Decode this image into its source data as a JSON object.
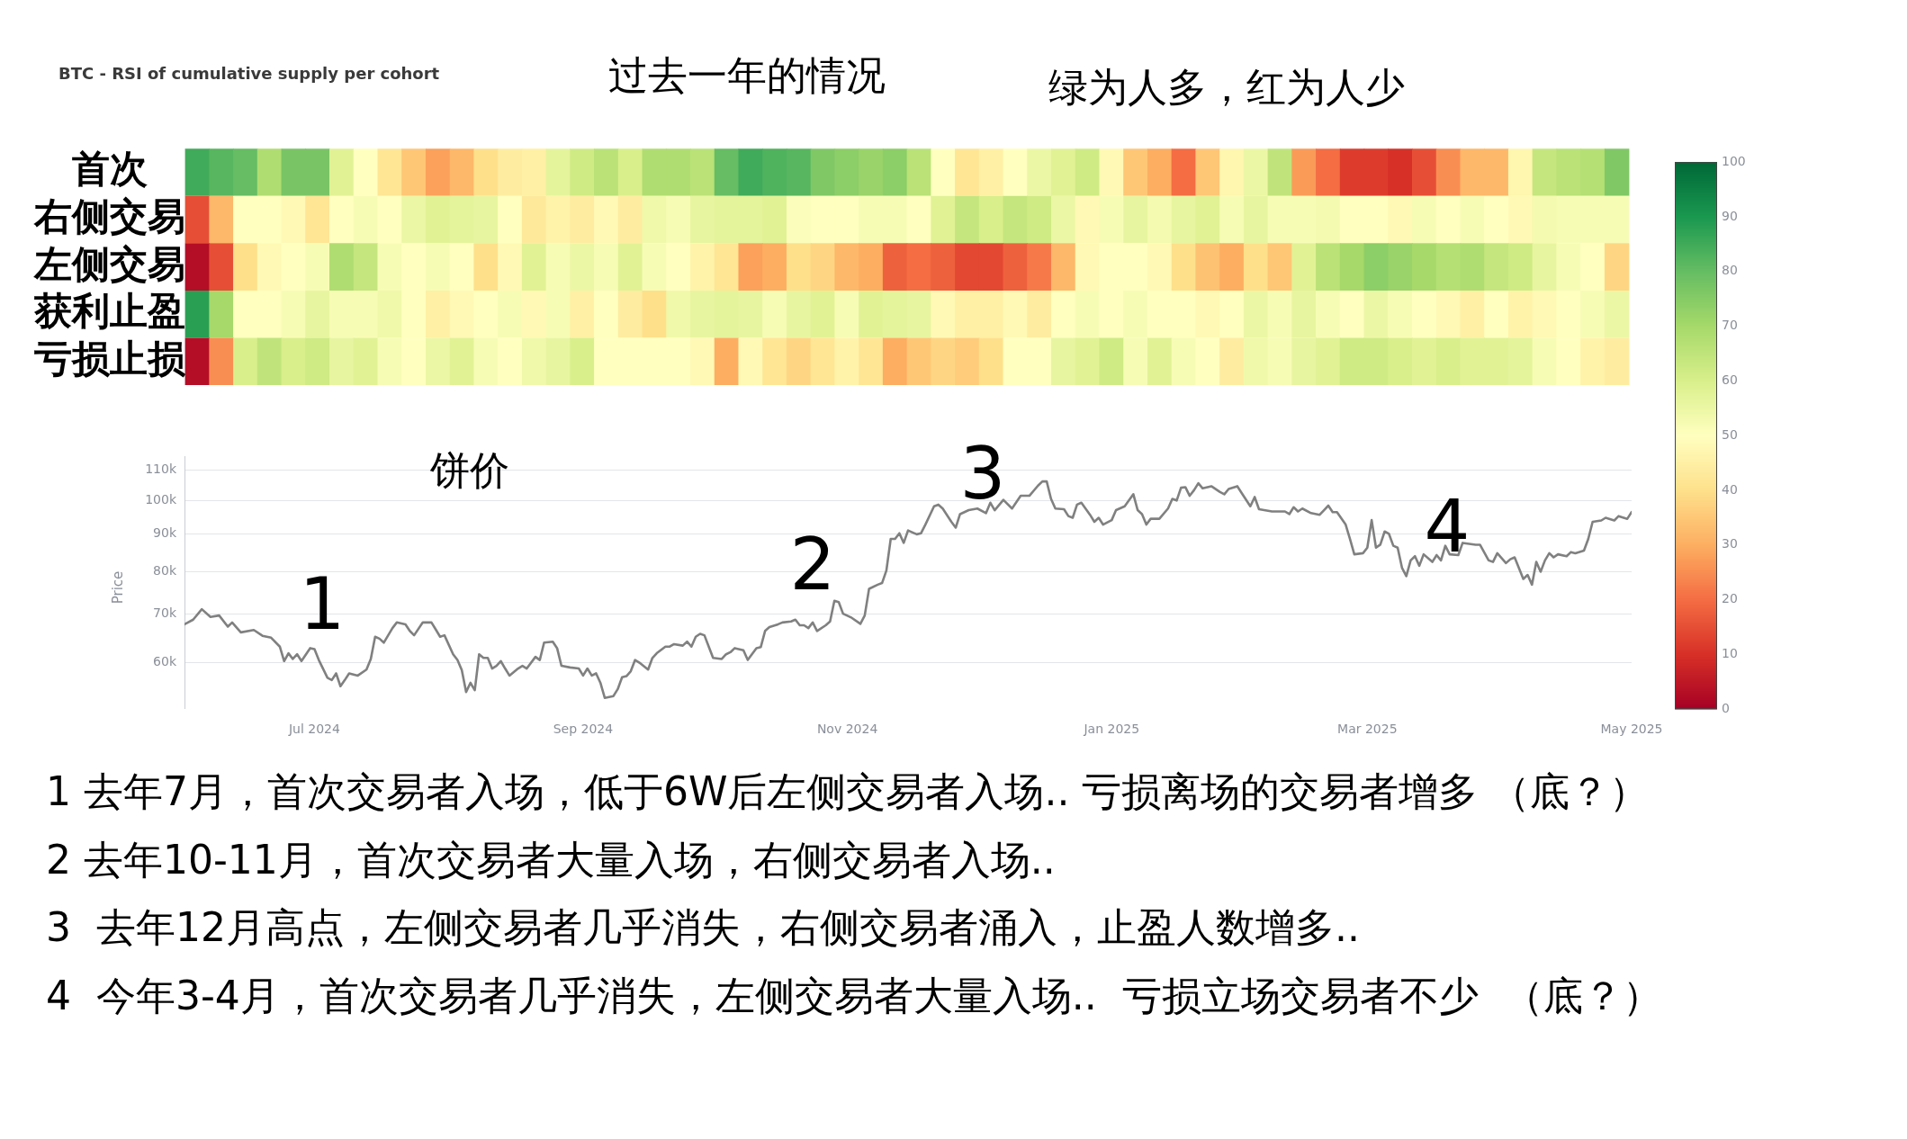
{
  "chart_data": [
    {
      "type": "heatmap",
      "title": "BTC - RSI of cumulative supply per cohort",
      "subtitle": "过去一年的情况",
      "annotations": [
        "绿为人多，红为人少"
      ],
      "categories": [
        null,
        null,
        null,
        null,
        null,
        null,
        null,
        null,
        null,
        null,
        null,
        null,
        null,
        null,
        null,
        null,
        null,
        null,
        null,
        null,
        null,
        null,
        null,
        null,
        null,
        null,
        null,
        null,
        null,
        null,
        null,
        null,
        null,
        null,
        null,
        null,
        null,
        null,
        null,
        null,
        null,
        null,
        null,
        null,
        null,
        null,
        null,
        null,
        null,
        null,
        null,
        null,
        null,
        null,
        null,
        null,
        null,
        null,
        null,
        null
      ],
      "y_categories": [
        "首次",
        "右侧交易",
        "左侧交易",
        "获利止盈",
        "亏损止损"
      ],
      "cells": [
        [
          85,
          82,
          80,
          68,
          77,
          77,
          58,
          50,
          42,
          35,
          28,
          32,
          40,
          44,
          45,
          57,
          62,
          66,
          60,
          68,
          68,
          66,
          80,
          85,
          83,
          82,
          76,
          74,
          72,
          74,
          66,
          50,
          42,
          45,
          50,
          55,
          58,
          62,
          48,
          35,
          30,
          20,
          35,
          47,
          55,
          65,
          27,
          20,
          12,
          12,
          10,
          15,
          25,
          32,
          32,
          47,
          64,
          66,
          67,
          76
        ],
        [
          15,
          32,
          50,
          50,
          48,
          42,
          50,
          52,
          50,
          55,
          58,
          57,
          56,
          50,
          43,
          46,
          44,
          48,
          44,
          54,
          52,
          56,
          57,
          57,
          58,
          51,
          50,
          50,
          52,
          52,
          50,
          58,
          64,
          60,
          64,
          62,
          55,
          48,
          52,
          56,
          53,
          56,
          58,
          52,
          56,
          52,
          52,
          53,
          50,
          50,
          48,
          52,
          50,
          52,
          50,
          48,
          53,
          52,
          52,
          52
        ],
        [
          3,
          15,
          40,
          48,
          50,
          52,
          68,
          64,
          52,
          50,
          52,
          50,
          40,
          48,
          58,
          52,
          55,
          52,
          58,
          52,
          50,
          46,
          42,
          28,
          30,
          40,
          38,
          32,
          30,
          18,
          20,
          18,
          14,
          14,
          18,
          22,
          32,
          48,
          50,
          50,
          48,
          40,
          34,
          30,
          40,
          35,
          58,
          66,
          70,
          74,
          72,
          70,
          67,
          68,
          64,
          62,
          56,
          52,
          50,
          38
        ],
        [
          88,
          70,
          50,
          50,
          52,
          56,
          52,
          52,
          54,
          50,
          45,
          48,
          50,
          52,
          48,
          52,
          45,
          50,
          44,
          40,
          54,
          56,
          57,
          56,
          52,
          56,
          58,
          52,
          58,
          57,
          56,
          48,
          45,
          45,
          48,
          44,
          50,
          52,
          50,
          52,
          50,
          50,
          48,
          50,
          55,
          52,
          56,
          52,
          50,
          55,
          52,
          50,
          48,
          45,
          50,
          46,
          48,
          50,
          52,
          55
        ],
        [
          3,
          25,
          60,
          65,
          60,
          62,
          56,
          58,
          52,
          50,
          55,
          58,
          52,
          50,
          54,
          56,
          60,
          50,
          50,
          50,
          50,
          48,
          30,
          48,
          42,
          38,
          42,
          46,
          42,
          30,
          35,
          38,
          36,
          40,
          50,
          50,
          56,
          58,
          62,
          52,
          58,
          52,
          50,
          44,
          54,
          52,
          56,
          58,
          62,
          62,
          60,
          58,
          60,
          58,
          58,
          57,
          52,
          50,
          46,
          44
        ]
      ],
      "clim": [
        0,
        100
      ],
      "cticks": [
        0,
        10,
        20,
        30,
        40,
        50,
        60,
        70,
        80,
        90,
        100
      ],
      "tick_labels": "y"
    },
    {
      "type": "line",
      "title": "饼价",
      "ylabel": "Price",
      "x": [
        "2024-06-01",
        "2024-06-03",
        "2024-06-05",
        "2024-06-07",
        "2024-06-09",
        "2024-06-11",
        "2024-06-12",
        "2024-06-14",
        "2024-06-17",
        "2024-06-19",
        "2024-06-21",
        "2024-06-23",
        "2024-06-24",
        "2024-06-25",
        "2024-06-26",
        "2024-06-27",
        "2024-06-28",
        "2024-06-30",
        "2024-07-01",
        "2024-07-02",
        "2024-07-04",
        "2024-07-05",
        "2024-07-06",
        "2024-07-07",
        "2024-07-08",
        "2024-07-09",
        "2024-07-11",
        "2024-07-13",
        "2024-07-14",
        "2024-07-15",
        "2024-07-16",
        "2024-07-17",
        "2024-07-19",
        "2024-07-20",
        "2024-07-22",
        "2024-07-23",
        "2024-07-24",
        "2024-07-26",
        "2024-07-28",
        "2024-07-29",
        "2024-07-30",
        "2024-07-31",
        "2024-08-02",
        "2024-08-03",
        "2024-08-04",
        "2024-08-05",
        "2024-08-06",
        "2024-08-07",
        "2024-08-08",
        "2024-08-09",
        "2024-08-10",
        "2024-08-11",
        "2024-08-12",
        "2024-08-13",
        "2024-08-14",
        "2024-08-15",
        "2024-08-17",
        "2024-08-18",
        "2024-08-19",
        "2024-08-21",
        "2024-08-22",
        "2024-08-23",
        "2024-08-25",
        "2024-08-26",
        "2024-08-27",
        "2024-08-29",
        "2024-08-31",
        "2024-09-01",
        "2024-09-02",
        "2024-09-03",
        "2024-09-04",
        "2024-09-05",
        "2024-09-06",
        "2024-09-08",
        "2024-09-09",
        "2024-09-10",
        "2024-09-11",
        "2024-09-12",
        "2024-09-13",
        "2024-09-14",
        "2024-09-16",
        "2024-09-17",
        "2024-09-18",
        "2024-09-20",
        "2024-09-21",
        "2024-09-22",
        "2024-09-24",
        "2024-09-25",
        "2024-09-26",
        "2024-09-27",
        "2024-09-28",
        "2024-09-29",
        "2024-09-30",
        "2024-10-01",
        "2024-10-03",
        "2024-10-04",
        "2024-10-05",
        "2024-10-06",
        "2024-10-08",
        "2024-10-09",
        "2024-10-11",
        "2024-10-12",
        "2024-10-13",
        "2024-10-14",
        "2024-10-16",
        "2024-10-17",
        "2024-10-19",
        "2024-10-20",
        "2024-10-21",
        "2024-10-22",
        "2024-10-23",
        "2024-10-24",
        "2024-10-25",
        "2024-10-27",
        "2024-10-28",
        "2024-10-29",
        "2024-10-30",
        "2024-10-31",
        "2024-11-02",
        "2024-11-04",
        "2024-11-05",
        "2024-11-06",
        "2024-11-08",
        "2024-11-09",
        "2024-11-10",
        "2024-11-11",
        "2024-11-12",
        "2024-11-13",
        "2024-11-14",
        "2024-11-15",
        "2024-11-17",
        "2024-11-18",
        "2024-11-19",
        "2024-11-21",
        "2024-11-22",
        "2024-11-23",
        "2024-11-25",
        "2024-11-26",
        "2024-11-27",
        "2024-11-28",
        "2024-11-29",
        "2024-12-01",
        "2024-12-03",
        "2024-12-04",
        "2024-12-05",
        "2024-12-07",
        "2024-12-09",
        "2024-12-11",
        "2024-12-13",
        "2024-12-15",
        "2024-12-16",
        "2024-12-17",
        "2024-12-18",
        "2024-12-19",
        "2024-12-21",
        "2024-12-22",
        "2024-12-23",
        "2024-12-24",
        "2024-12-25",
        "2024-12-27",
        "2024-12-28",
        "2024-12-29",
        "2024-12-30",
        "2025-01-01",
        "2025-01-02",
        "2025-01-04",
        "2025-01-06",
        "2025-01-07",
        "2025-01-08",
        "2025-01-09",
        "2025-01-10",
        "2025-01-12",
        "2025-01-14",
        "2025-01-15",
        "2025-01-16",
        "2025-01-17",
        "2025-01-18",
        "2025-01-19",
        "2025-01-20",
        "2025-01-21",
        "2025-01-22",
        "2025-01-24",
        "2025-01-26",
        "2025-01-27",
        "2025-01-28",
        "2025-01-30",
        "2025-01-31",
        "2025-02-02",
        "2025-02-03",
        "2025-02-04",
        "2025-02-07",
        "2025-02-10",
        "2025-02-11",
        "2025-02-12",
        "2025-02-13",
        "2025-02-14",
        "2025-02-16",
        "2025-02-18",
        "2025-02-19",
        "2025-02-20",
        "2025-02-21",
        "2025-02-22",
        "2025-02-24",
        "2025-02-25",
        "2025-02-26",
        "2025-02-28",
        "2025-03-01",
        "2025-03-02",
        "2025-03-03",
        "2025-03-04",
        "2025-03-05",
        "2025-03-06",
        "2025-03-07",
        "2025-03-08",
        "2025-03-09",
        "2025-03-10",
        "2025-03-11",
        "2025-03-12",
        "2025-03-13",
        "2025-03-14",
        "2025-03-16",
        "2025-03-17",
        "2025-03-18",
        "2025-03-19",
        "2025-03-20",
        "2025-03-22",
        "2025-03-23",
        "2025-03-26",
        "2025-03-27",
        "2025-03-29",
        "2025-03-30",
        "2025-03-31",
        "2025-04-02",
        "2025-04-03",
        "2025-04-04",
        "2025-04-06",
        "2025-04-07",
        "2025-04-08",
        "2025-04-09",
        "2025-04-10",
        "2025-04-11",
        "2025-04-12",
        "2025-04-13",
        "2025-04-14",
        "2025-04-16",
        "2025-04-17",
        "2025-04-18",
        "2025-04-20",
        "2025-04-21",
        "2025-04-22",
        "2025-04-24",
        "2025-04-25",
        "2025-04-27",
        "2025-04-28",
        "2025-04-30",
        "2025-05-01"
      ],
      "series": [
        {
          "color": "#808080",
          "values": [
            67700,
            68700,
            71000,
            69300,
            69600,
            67200,
            68100,
            66000,
            66500,
            65300,
            64900,
            63100,
            60300,
            61800,
            60700,
            61600,
            60300,
            62800,
            62600,
            60500,
            57200,
            56800,
            58000,
            55700,
            56800,
            58000,
            57600,
            58700,
            60700,
            65100,
            64700,
            63900,
            66900,
            68100,
            67700,
            66300,
            65400,
            68100,
            68100,
            66600,
            65100,
            65400,
            61600,
            60500,
            58600,
            54700,
            56300,
            55000,
            61600,
            60900,
            60900,
            58900,
            59400,
            60300,
            58900,
            57600,
            58900,
            59400,
            58900,
            61100,
            60500,
            63900,
            64100,
            62800,
            59400,
            59100,
            58900,
            57600,
            58900,
            57600,
            58000,
            56300,
            53700,
            54000,
            55200,
            57300,
            57500,
            58400,
            60500,
            60000,
            58700,
            60900,
            61800,
            63100,
            63100,
            63600,
            63300,
            64100,
            63100,
            65100,
            65700,
            65400,
            63100,
            60900,
            60700,
            61600,
            62000,
            62800,
            62400,
            60500,
            62800,
            63000,
            66300,
            67100,
            67700,
            68100,
            68300,
            68700,
            67500,
            67500,
            66900,
            68100,
            66300,
            67500,
            68300,
            72900,
            72600,
            70000,
            69100,
            67800,
            69600,
            75700,
            76700,
            77100,
            80200,
            88600,
            88600,
            90200,
            87500,
            91000,
            89900,
            90200,
            92700,
            98200,
            98700,
            97500,
            93500,
            91800,
            95800,
            96400,
            97000,
            97500,
            96100,
            99300,
            97000,
            100200,
            97500,
            101500,
            101500,
            104800,
            106200,
            106200,
            100500,
            97500,
            97300,
            95200,
            94700,
            98700,
            99300,
            95600,
            93500,
            94700,
            92700,
            94000,
            97000,
            98200,
            102000,
            97000,
            95800,
            92700,
            94400,
            94400,
            97500,
            100500,
            100000,
            104100,
            104300,
            101500,
            103300,
            105600,
            103900,
            104600,
            102700,
            102000,
            103700,
            104600,
            102400,
            98200,
            101100,
            97300,
            96600,
            96600,
            95800,
            97900,
            96600,
            97500,
            96100,
            95600,
            97000,
            98400,
            96400,
            96400,
            92700,
            88600,
            84400,
            84700,
            86200,
            94000,
            86200,
            87000,
            90700,
            90000,
            86700,
            86200,
            80900,
            78800,
            82800,
            83900,
            81400,
            84400,
            82400,
            84200,
            82800,
            86700,
            84400,
            84200,
            87500,
            87000,
            87000,
            82800,
            82400,
            84700,
            82100,
            83100,
            83600,
            78100,
            79100,
            76700,
            82400,
            79900,
            82800,
            84700,
            83600,
            84400,
            83900,
            85000,
            84700,
            85400,
            88600,
            93500,
            93900,
            94700,
            93900,
            95200,
            94400,
            96400
          ]
        }
      ],
      "xlim": [
        "2024-06-01",
        "2025-05-01"
      ],
      "xticks": [
        {
          "value": "2024-07-01",
          "label": "Jul 2024"
        },
        {
          "value": "2024-09-01",
          "label": "Sep 2024"
        },
        {
          "value": "2024-11-01",
          "label": "Nov 2024"
        },
        {
          "value": "2025-01-01",
          "label": "Jan 2025"
        },
        {
          "value": "2025-03-01",
          "label": "Mar 2025"
        },
        {
          "value": "2025-05-01",
          "label": "May 2025"
        }
      ],
      "ylim": [
        52000,
        115000
      ],
      "yticks": [
        {
          "value": 60000,
          "label": "60k"
        },
        {
          "value": 70000,
          "label": "70k"
        },
        {
          "value": 80000,
          "label": "80k"
        },
        {
          "value": 90000,
          "label": "90k"
        },
        {
          "value": 100000,
          "label": "100k"
        },
        {
          "value": 110000,
          "label": "110k"
        }
      ],
      "log": true,
      "grid": "y",
      "marker": "none",
      "annotations": [
        "1",
        "2",
        "3",
        "4",
        "1 去年7月，首次交易者入场，低于6W后左侧交易者入场.. 亏损离场的交易者增多 （底？）",
        "2 去年10-11月，首次交易者大量入场，右侧交易者入场..",
        "3  去年12月高点，左侧交易者几乎消失，右侧交易者涌入，止盈人数增多..",
        "4  今年3-4月，首次交易者几乎消失，左侧交易者大量入场..  亏损立场交易者不少  （底？）"
      ]
    }
  ]
}
